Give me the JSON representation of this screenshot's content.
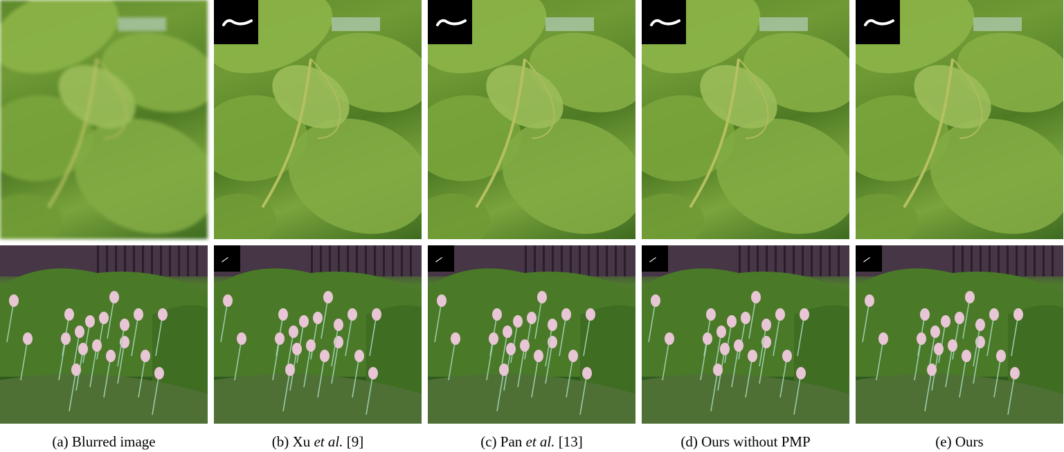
{
  "figure": {
    "panels": [
      {
        "key": "a",
        "caption_prefix": "(a)",
        "caption_main": "Blurred image",
        "caption_italic": "",
        "caption_suffix": "",
        "has_kernel": false,
        "blurred": true
      },
      {
        "key": "b",
        "caption_prefix": "(b)",
        "caption_main": "Xu",
        "caption_italic": "et al.",
        "caption_suffix": "[9]",
        "has_kernel": true,
        "blurred": false
      },
      {
        "key": "c",
        "caption_prefix": "(c)",
        "caption_main": "Pan",
        "caption_italic": "et al.",
        "caption_suffix": "[13]",
        "has_kernel": true,
        "blurred": false
      },
      {
        "key": "d",
        "caption_prefix": "(d)",
        "caption_main": "Ours without PMP",
        "caption_italic": "",
        "caption_suffix": "",
        "has_kernel": true,
        "blurred": false
      },
      {
        "key": "e",
        "caption_prefix": "(e)",
        "caption_main": "Ours",
        "caption_italic": "",
        "caption_suffix": "",
        "has_kernel": true,
        "blurred": false
      }
    ],
    "rows": [
      "leaves",
      "tulips"
    ],
    "colors": {
      "leaf_green": "#6f9a35",
      "leaf_dark": "#3d6a1f",
      "hedge_green": "#4f7a2e",
      "building": "#3a2c3a",
      "tulip_pink": "#e9c6d6",
      "kernel_bg": "#000000",
      "kernel_trace": "#ffffff"
    }
  }
}
